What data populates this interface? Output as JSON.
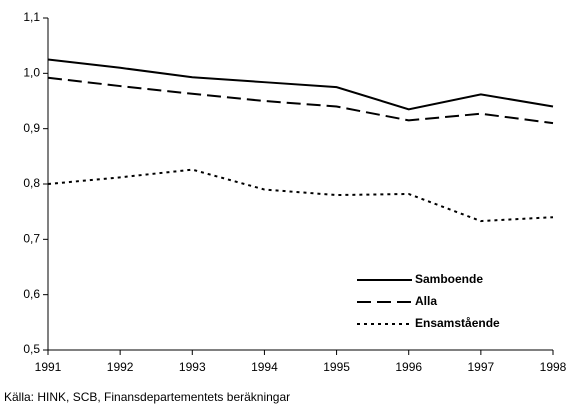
{
  "chart_data": {
    "type": "line",
    "x": [
      1991,
      1992,
      1993,
      1994,
      1995,
      1996,
      1997,
      1998
    ],
    "series": [
      {
        "name": "Samboende",
        "color": "#000000",
        "dash": "solid",
        "values": [
          1.025,
          1.01,
          0.993,
          0.984,
          0.975,
          0.935,
          0.962,
          0.94
        ]
      },
      {
        "name": "Alla",
        "color": "#000000",
        "dash": "dashed",
        "values": [
          0.992,
          0.977,
          0.963,
          0.95,
          0.94,
          0.915,
          0.927,
          0.91
        ]
      },
      {
        "name": "Ensamstående",
        "color": "#000000",
        "dash": "dotted",
        "values": [
          0.8,
          0.812,
          0.826,
          0.79,
          0.78,
          0.782,
          0.733,
          0.74
        ]
      }
    ],
    "xlim": [
      1991,
      1998
    ],
    "xticks": [
      1991,
      1992,
      1993,
      1994,
      1995,
      1996,
      1997,
      1998
    ],
    "ylim": [
      0.5,
      1.1
    ],
    "yticks": [
      {
        "value": 0.5,
        "label": "0,5"
      },
      {
        "value": 0.6,
        "label": "0,6"
      },
      {
        "value": 0.7,
        "label": "0,7"
      },
      {
        "value": 0.8,
        "label": "0,8"
      },
      {
        "value": 0.9,
        "label": "0,9"
      },
      {
        "value": 1.0,
        "label": "1,0"
      },
      {
        "value": 1.1,
        "label": "1,1"
      }
    ],
    "legend": "lower right",
    "source": "Källa: HINK, SCB, Finansdepartementets beräkningar"
  }
}
